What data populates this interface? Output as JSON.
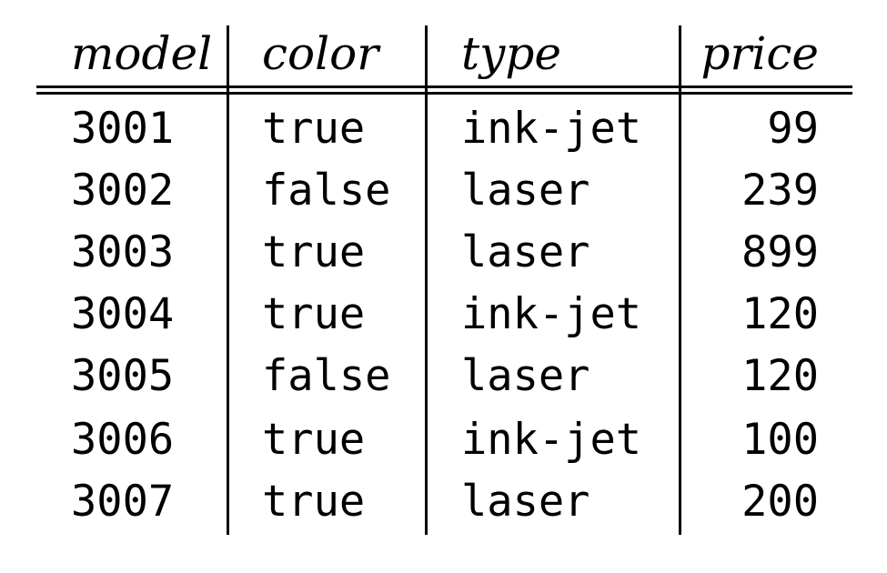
{
  "table": {
    "headers": [
      "model",
      "color",
      "type",
      "price"
    ],
    "rows": [
      [
        "3001",
        "true",
        "ink-jet",
        "99"
      ],
      [
        "3002",
        "false",
        "laser",
        "239"
      ],
      [
        "3003",
        "true",
        "laser",
        "899"
      ],
      [
        "3004",
        "true",
        "ink-jet",
        "120"
      ],
      [
        "3005",
        "false",
        "laser",
        "120"
      ],
      [
        "3006",
        "true",
        "ink-jet",
        "100"
      ],
      [
        "3007",
        "true",
        "laser",
        "200"
      ]
    ]
  }
}
